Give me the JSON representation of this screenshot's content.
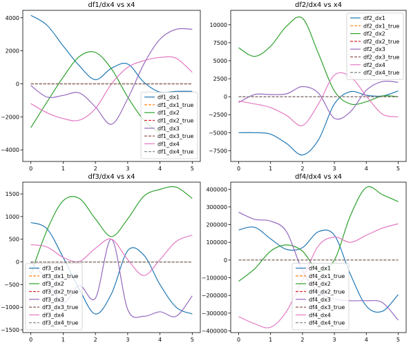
{
  "figure": {
    "colors": {
      "dx1": "#1f77b4",
      "dx1_true": "#ff7f0e",
      "dx2": "#2ca02c",
      "dx2_true": "#d62728",
      "dx3": "#9467bd",
      "dx3_true": "#8c564b",
      "dx4": "#e377c2",
      "dx4_true": "#7f7f7f"
    }
  },
  "chart_data": [
    {
      "type": "line",
      "title": "df1/dx4 vs x4",
      "xlim": [
        -0.25,
        5.25
      ],
      "ylim": [
        -4700,
        4450
      ],
      "xticks": [
        0,
        1,
        2,
        3,
        4,
        5
      ],
      "yticks": [
        -4000,
        -2000,
        0,
        2000,
        4000
      ],
      "ytick_labels": [
        "−4000",
        "−2000",
        "0",
        "2000",
        "4000"
      ],
      "legend": "lower-right",
      "x": [
        0,
        0.5,
        1,
        1.5,
        2,
        2.5,
        3,
        3.5,
        4,
        4.5,
        5
      ],
      "series": [
        {
          "name": "df1_dx1",
          "key": "dx1",
          "dashed": false,
          "values": [
            4150,
            3550,
            2300,
            1100,
            250,
            950,
            1200,
            100,
            -500,
            -450,
            -450
          ]
        },
        {
          "name": "df1_dx1_true",
          "key": "dx1_true",
          "dashed": true,
          "values": [
            0,
            0,
            0,
            0,
            0,
            0,
            0,
            0,
            0,
            0,
            0
          ]
        },
        {
          "name": "df1_dx2",
          "key": "dx2",
          "dashed": false,
          "values": [
            -2650,
            -1100,
            400,
            1650,
            1900,
            900,
            -800,
            -2200,
            -3000,
            null,
            null
          ]
        },
        {
          "name": "df1_dx2_true",
          "key": "dx2_true",
          "dashed": true,
          "values": [
            0,
            0,
            0,
            0,
            0,
            0,
            0,
            0,
            0,
            0,
            0
          ]
        },
        {
          "name": "df1_dx3",
          "key": "dx3",
          "dashed": false,
          "values": [
            -100,
            -800,
            -700,
            -550,
            -1400,
            -2450,
            -900,
            1200,
            2700,
            3300,
            3300
          ]
        },
        {
          "name": "df1_dx3_true",
          "key": "dx3_true",
          "dashed": true,
          "values": [
            0,
            0,
            0,
            0,
            0,
            0,
            0,
            0,
            0,
            0,
            0
          ]
        },
        {
          "name": "df1_dx4",
          "key": "dx4",
          "dashed": false,
          "values": [
            -1200,
            -1750,
            -2100,
            -2200,
            -1500,
            0,
            1000,
            1400,
            1600,
            1550,
            700
          ]
        },
        {
          "name": "df1_dx4_true",
          "key": "dx4_true",
          "dashed": true,
          "values": [
            0,
            0,
            0,
            0,
            0,
            0,
            0,
            0,
            0,
            0,
            0
          ]
        }
      ]
    },
    {
      "type": "line",
      "title": "df2/dx4 vs x4",
      "xlim": [
        -0.25,
        5.25
      ],
      "ylim": [
        -9000,
        12000
      ],
      "xticks": [
        0,
        1,
        2,
        3,
        4,
        5
      ],
      "yticks": [
        -7500,
        -5000,
        -2500,
        0,
        2500,
        5000,
        7500,
        10000
      ],
      "ytick_labels": [
        "−7500",
        "−5000",
        "−2500",
        "0",
        "2500",
        "5000",
        "7500",
        "10000"
      ],
      "legend": "upper-right",
      "x": [
        0,
        0.5,
        1,
        1.5,
        2,
        2.5,
        3,
        3.5,
        4,
        4.5,
        5
      ],
      "series": [
        {
          "name": "df2_dx1",
          "key": "dx1",
          "dashed": false,
          "values": [
            -5000,
            -5000,
            -5200,
            -6500,
            -8100,
            -6000,
            -1000,
            700,
            200,
            100,
            800
          ]
        },
        {
          "name": "df2_dx1_true",
          "key": "dx1_true",
          "dashed": true,
          "values": [
            0,
            0,
            0,
            0,
            0,
            0,
            0,
            0,
            0,
            0,
            0
          ]
        },
        {
          "name": "df2_dx2",
          "key": "dx2",
          "dashed": false,
          "values": [
            6800,
            5600,
            7000,
            9800,
            10900,
            6000,
            800,
            -1000,
            -700,
            100,
            0
          ]
        },
        {
          "name": "df2_dx2_true",
          "key": "dx2_true",
          "dashed": true,
          "values": [
            0,
            0,
            0,
            0,
            0,
            0,
            0,
            0,
            0,
            0,
            0
          ]
        },
        {
          "name": "df2_dx3",
          "key": "dx3",
          "dashed": false,
          "values": [
            -800,
            300,
            300,
            400,
            1400,
            500,
            -3000,
            -2100,
            900,
            2100,
            2000
          ]
        },
        {
          "name": "df2_dx3_true",
          "key": "dx3_true",
          "dashed": true,
          "values": [
            0,
            0,
            0,
            0,
            0,
            0,
            0,
            0,
            0,
            0,
            0
          ]
        },
        {
          "name": "df2_dx4",
          "key": "dx4",
          "dashed": false,
          "values": [
            -600,
            -1000,
            -1500,
            -2600,
            -4000,
            -1000,
            3000,
            2800,
            100,
            -2400,
            -2800
          ]
        },
        {
          "name": "df2_dx4_true",
          "key": "dx4_true",
          "dashed": true,
          "values": [
            0,
            0,
            0,
            0,
            0,
            0,
            0,
            0,
            0,
            0,
            0
          ]
        }
      ]
    },
    {
      "type": "line",
      "title": "df3/dx4 vs x4",
      "xlim": [
        -0.25,
        5.25
      ],
      "ylim": [
        -1560,
        1760
      ],
      "xticks": [
        0,
        1,
        2,
        3,
        4,
        5
      ],
      "yticks": [
        -1500,
        -1000,
        -500,
        0,
        500,
        1000,
        1500
      ],
      "ytick_labels": [
        "−1500",
        "−1000",
        "−500",
        "0",
        "500",
        "1000",
        "1500"
      ],
      "legend": "lower-left",
      "x": [
        0,
        0.5,
        1,
        1.5,
        2,
        2.5,
        3,
        3.5,
        4,
        4.5,
        5
      ],
      "series": [
        {
          "name": "df3_dx1",
          "key": "dx1",
          "dashed": false,
          "values": [
            870,
            730,
            100,
            -600,
            -1150,
            -700,
            250,
            150,
            -500,
            -1000,
            -1150
          ]
        },
        {
          "name": "df3_dx1_true",
          "key": "dx1_true",
          "dashed": true,
          "values": [
            0,
            0,
            0,
            0,
            0,
            0,
            0,
            0,
            0,
            0,
            0
          ]
        },
        {
          "name": "df3_dx2",
          "key": "dx2",
          "dashed": false,
          "values": [
            -270,
            700,
            1350,
            1400,
            950,
            560,
            950,
            1450,
            1600,
            1650,
            1400
          ]
        },
        {
          "name": "df3_dx2_true",
          "key": "dx2_true",
          "dashed": true,
          "values": [
            0,
            0,
            0,
            0,
            0,
            0,
            0,
            0,
            0,
            0,
            0
          ]
        },
        {
          "name": "df3_dx3",
          "key": "dx3",
          "dashed": false,
          "values": [
            0,
            -400,
            -900,
            -520,
            -800,
            500,
            -1050,
            -1200,
            -1100,
            -1200,
            -750
          ]
        },
        {
          "name": "df3_dx3_true",
          "key": "dx3_true",
          "dashed": true,
          "values": [
            0,
            0,
            0,
            0,
            0,
            0,
            0,
            0,
            0,
            0,
            0
          ]
        },
        {
          "name": "df3_dx4",
          "key": "dx4",
          "dashed": false,
          "values": [
            380,
            330,
            100,
            10,
            300,
            500,
            50,
            -300,
            50,
            450,
            590
          ]
        },
        {
          "name": "df3_dx4_true",
          "key": "dx4_true",
          "dashed": true,
          "values": [
            0,
            0,
            0,
            0,
            0,
            0,
            0,
            0,
            0,
            0,
            0
          ]
        }
      ]
    },
    {
      "type": "line",
      "title": "df4/dx4 vs x4",
      "xlim": [
        -0.25,
        5.25
      ],
      "ylim": [
        -410000,
        440000
      ],
      "xticks": [
        0,
        1,
        2,
        3,
        4,
        5
      ],
      "yticks": [
        -400000,
        -300000,
        -200000,
        -100000,
        0,
        100000,
        200000,
        300000,
        400000
      ],
      "ytick_labels": [
        "−400000",
        "−300000",
        "−200000",
        "−100000",
        "0",
        "100000",
        "200000",
        "300000",
        "400000"
      ],
      "legend": "lower-center",
      "x": [
        0,
        0.5,
        1,
        1.5,
        2,
        2.5,
        3,
        3.5,
        4,
        4.5,
        5
      ],
      "series": [
        {
          "name": "df4_dx1",
          "key": "dx1",
          "dashed": false,
          "values": [
            170000,
            185000,
            120000,
            60000,
            70000,
            160000,
            140000,
            -80000,
            -260000,
            -290000,
            -195000
          ]
        },
        {
          "name": "df4_dx1_true",
          "key": "dx1_true",
          "dashed": true,
          "values": [
            0,
            0,
            0,
            0,
            0,
            0,
            0,
            0,
            0,
            0,
            0
          ]
        },
        {
          "name": "df4_dx2",
          "key": "dx2",
          "dashed": false,
          "values": [
            -120000,
            -50000,
            50000,
            85000,
            50000,
            -60000,
            0,
            250000,
            410000,
            370000,
            330000
          ]
        },
        {
          "name": "df4_dx2_true",
          "key": "dx2_true",
          "dashed": true,
          "values": [
            0,
            0,
            0,
            0,
            0,
            0,
            0,
            0,
            0,
            0,
            0
          ]
        },
        {
          "name": "df4_dx3",
          "key": "dx3",
          "dashed": false,
          "values": [
            270000,
            230000,
            220000,
            160000,
            -60000,
            -180000,
            -220000,
            -230000,
            -230000,
            -240000,
            -340000
          ]
        },
        {
          "name": "df4_dx3_true",
          "key": "dx3_true",
          "dashed": true,
          "values": [
            0,
            0,
            0,
            0,
            0,
            0,
            0,
            0,
            0,
            0,
            0
          ]
        },
        {
          "name": "df4_dx4",
          "key": "dx4",
          "dashed": false,
          "values": [
            -320000,
            -360000,
            -380000,
            -290000,
            -110000,
            80000,
            130000,
            100000,
            140000,
            180000,
            205000
          ]
        },
        {
          "name": "df4_dx4_true",
          "key": "dx4_true",
          "dashed": true,
          "values": [
            0,
            0,
            0,
            0,
            0,
            0,
            0,
            0,
            0,
            0,
            0
          ]
        }
      ]
    }
  ]
}
